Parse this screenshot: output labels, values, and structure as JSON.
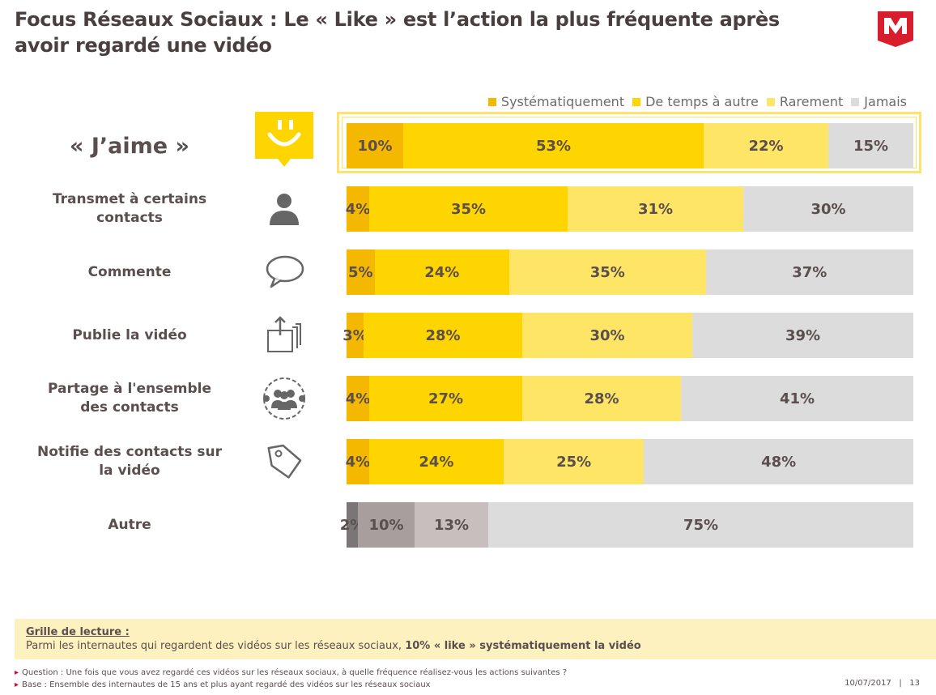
{
  "title": {
    "line1": "Focus Réseaux Sociaux : Le « Like » est l’action la plus fréquente après",
    "line2": "avoir regardé une vidéo"
  },
  "logo": {
    "icon": "m-logo-icon",
    "color": "#d81e2c"
  },
  "chart_data": {
    "type": "bar",
    "orientation": "horizontal-stacked-100",
    "legend_position": "top-right",
    "series": [
      {
        "name": "Systématiquement",
        "color": "#f5b800"
      },
      {
        "name": "De temps à autre",
        "color": "#ffd500"
      },
      {
        "name": "Rarement",
        "color": "#ffe566"
      },
      {
        "name": "Jamais",
        "color": "#dcdcdc"
      }
    ],
    "rows": [
      {
        "label": "« J’aime »",
        "icon": "smiley-icon",
        "values": [
          10,
          53,
          22,
          15
        ],
        "labels": [
          "10%",
          "53%",
          "22%",
          "15%"
        ],
        "highlight": true
      },
      {
        "label": "Transmet à certains contacts",
        "icon": "person-icon",
        "values": [
          4,
          35,
          31,
          30
        ],
        "labels": [
          "4%",
          "35%",
          "31%",
          "30%"
        ]
      },
      {
        "label": "Commente",
        "icon": "speech-bubble-icon",
        "values": [
          5,
          24,
          35,
          37
        ],
        "labels": [
          "5%",
          "24%",
          "35%",
          "37%"
        ]
      },
      {
        "label": "Publie la vidéo",
        "icon": "upload-stack-icon",
        "values": [
          3,
          28,
          30,
          39
        ],
        "labels": [
          "3%",
          "28%",
          "30%",
          "39%"
        ]
      },
      {
        "label": "Partage à l'ensemble des contacts",
        "icon": "group-icon",
        "values": [
          4,
          27,
          28,
          41
        ],
        "labels": [
          "4%",
          "27%",
          "28%",
          "41%"
        ]
      },
      {
        "label": "Notifie des contacts sur la vidéo",
        "icon": "tag-icon",
        "values": [
          4,
          24,
          25,
          48
        ],
        "labels": [
          "4%",
          "24%",
          "25%",
          "48%"
        ]
      },
      {
        "label": "Autre",
        "icon": "",
        "values": [
          2,
          10,
          13,
          75
        ],
        "labels": [
          "2%",
          "10%",
          "13%",
          "75%"
        ],
        "colors": [
          "#7a7676",
          "#a89e9e",
          "#c8bebe",
          "#dcdcdc"
        ]
      }
    ]
  },
  "reading": {
    "title": "Grille de lecture :",
    "body_prefix": "Parmi les internautes qui regardent des vidéos sur les réseaux sociaux, ",
    "body_bold": "10% « like » systématiquement la vidéo"
  },
  "notes": {
    "question": "Question : Une fois que vous avez regardé ces vidéos sur les réseaux sociaux, à quelle fréquence réalisez-vous les actions suivantes ?",
    "base": "Base : Ensemble des internautes de 15 ans et plus ayant regardé des vidéos sur les réseaux sociaux"
  },
  "footer": {
    "date": "10/07/2017",
    "separator": "|",
    "page": "13"
  }
}
